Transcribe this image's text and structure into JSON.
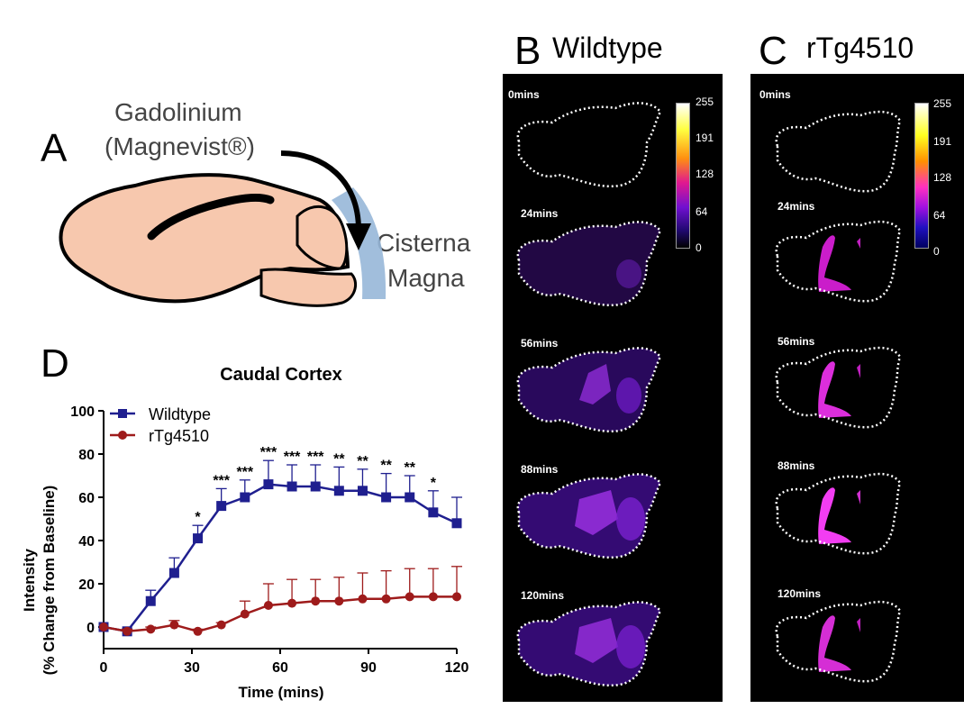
{
  "panels": {
    "A": {
      "letter": "A",
      "line1": "Gadolinium",
      "line2": "(Magnevist®)",
      "target1": "Cisterna",
      "target2": "Magna"
    },
    "B": {
      "letter": "B",
      "name": "Wildtype"
    },
    "C": {
      "letter": "C",
      "name": "rTg4510"
    },
    "D": {
      "letter": "D"
    }
  },
  "images": {
    "time_labels": [
      "0mins",
      "24mins",
      "56mins",
      "88mins",
      "120mins"
    ],
    "colorbar_ticks": [
      "255",
      "191",
      "128",
      "64",
      "0"
    ]
  },
  "chart_data": {
    "type": "line",
    "title": "Caudal Cortex",
    "xlabel": "Time (mins)",
    "ylabel_line1": "Intensity",
    "ylabel_line2": "(% Change from Baseline)",
    "xlim": [
      0,
      120
    ],
    "ylim": [
      -10,
      100
    ],
    "xticks": [
      0,
      30,
      60,
      90,
      120
    ],
    "yticks": [
      0,
      20,
      40,
      60,
      80,
      100
    ],
    "x": [
      0,
      8,
      16,
      24,
      32,
      40,
      48,
      56,
      64,
      72,
      80,
      88,
      96,
      104,
      112,
      120
    ],
    "series": [
      {
        "name": "Wildtype",
        "color": "#1f1f8f",
        "marker": "square",
        "values": [
          0,
          -2,
          12,
          25,
          41,
          56,
          60,
          66,
          65,
          65,
          63,
          63,
          60,
          60,
          53,
          48
        ],
        "err": [
          0,
          1,
          5,
          7,
          6,
          8,
          8,
          11,
          10,
          10,
          11,
          10,
          11,
          10,
          10,
          12
        ]
      },
      {
        "name": "rTg4510",
        "color": "#9e1b1b",
        "marker": "circle",
        "values": [
          0,
          -2,
          -1,
          1,
          -2,
          1,
          6,
          10,
          11,
          12,
          12,
          13,
          13,
          14,
          14,
          14
        ],
        "err": [
          0,
          1,
          1,
          2,
          1,
          1,
          6,
          10,
          11,
          10,
          11,
          12,
          13,
          13,
          13,
          14
        ]
      }
    ],
    "significance": [
      {
        "x": 32,
        "label": "*"
      },
      {
        "x": 40,
        "label": "***"
      },
      {
        "x": 48,
        "label": "***"
      },
      {
        "x": 56,
        "label": "***"
      },
      {
        "x": 64,
        "label": "***"
      },
      {
        "x": 72,
        "label": "***"
      },
      {
        "x": 80,
        "label": "**"
      },
      {
        "x": 88,
        "label": "**"
      },
      {
        "x": 96,
        "label": "**"
      },
      {
        "x": 104,
        "label": "**"
      },
      {
        "x": 112,
        "label": "*"
      }
    ],
    "legend": "top-left"
  }
}
